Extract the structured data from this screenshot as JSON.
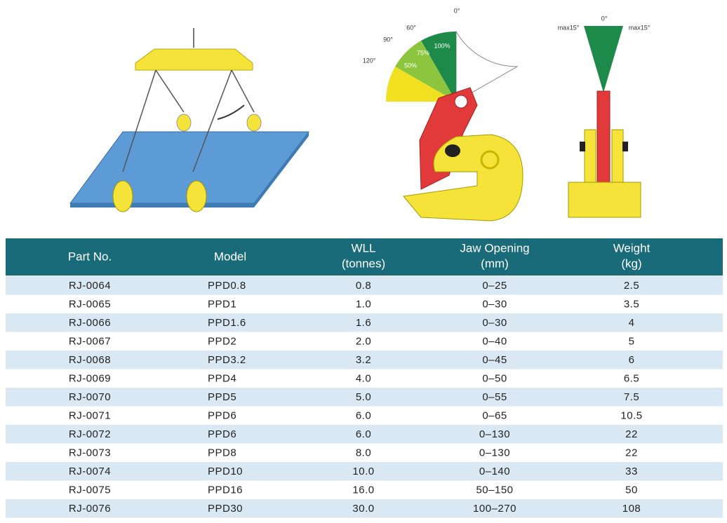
{
  "figures": {
    "tilt_labels": [
      "0°",
      "60°",
      "90°",
      "120°"
    ],
    "load_labels": [
      "100%",
      "75%",
      "50%"
    ],
    "side_labels": [
      "max15°",
      "0°",
      "max15°"
    ]
  },
  "table": {
    "headers": [
      [
        "Part No."
      ],
      [
        "Model"
      ],
      [
        "WLL",
        "(tonnes)"
      ],
      [
        "Jaw Opening",
        "(mm)"
      ],
      [
        "Weight",
        "(kg)"
      ]
    ],
    "rows": [
      [
        "RJ-0064",
        "PPD0.8",
        "0.8",
        "0–25",
        "2.5"
      ],
      [
        "RJ-0065",
        "PPD1",
        "1.0",
        "0–30",
        "3.5"
      ],
      [
        "RJ-0066",
        "PPD1.6",
        "1.6",
        "0–30",
        "4"
      ],
      [
        "RJ-0067",
        "PPD2",
        "2.0",
        "0–40",
        "5"
      ],
      [
        "RJ-0068",
        "PPD3.2",
        "3.2",
        "0–45",
        "6"
      ],
      [
        "RJ-0069",
        "PPD4",
        "4.0",
        "0–50",
        "6.5"
      ],
      [
        "RJ-0070",
        "PPD5",
        "5.0",
        "0–55",
        "7.5"
      ],
      [
        "RJ-0071",
        "PPD6",
        "6.0",
        "0–65",
        "10.5"
      ],
      [
        "RJ-0072",
        "PPD6",
        "6.0",
        "0–130",
        "22"
      ],
      [
        "RJ-0073",
        "PPD8",
        "8.0",
        "0–130",
        "22"
      ],
      [
        "RJ-0074",
        "PPD10",
        "10.0",
        "0–140",
        "33"
      ],
      [
        "RJ-0075",
        "PPD16",
        "16.0",
        "50–150",
        "50"
      ],
      [
        "RJ-0076",
        "PPD30",
        "30.0",
        "100–270",
        "108"
      ]
    ]
  }
}
